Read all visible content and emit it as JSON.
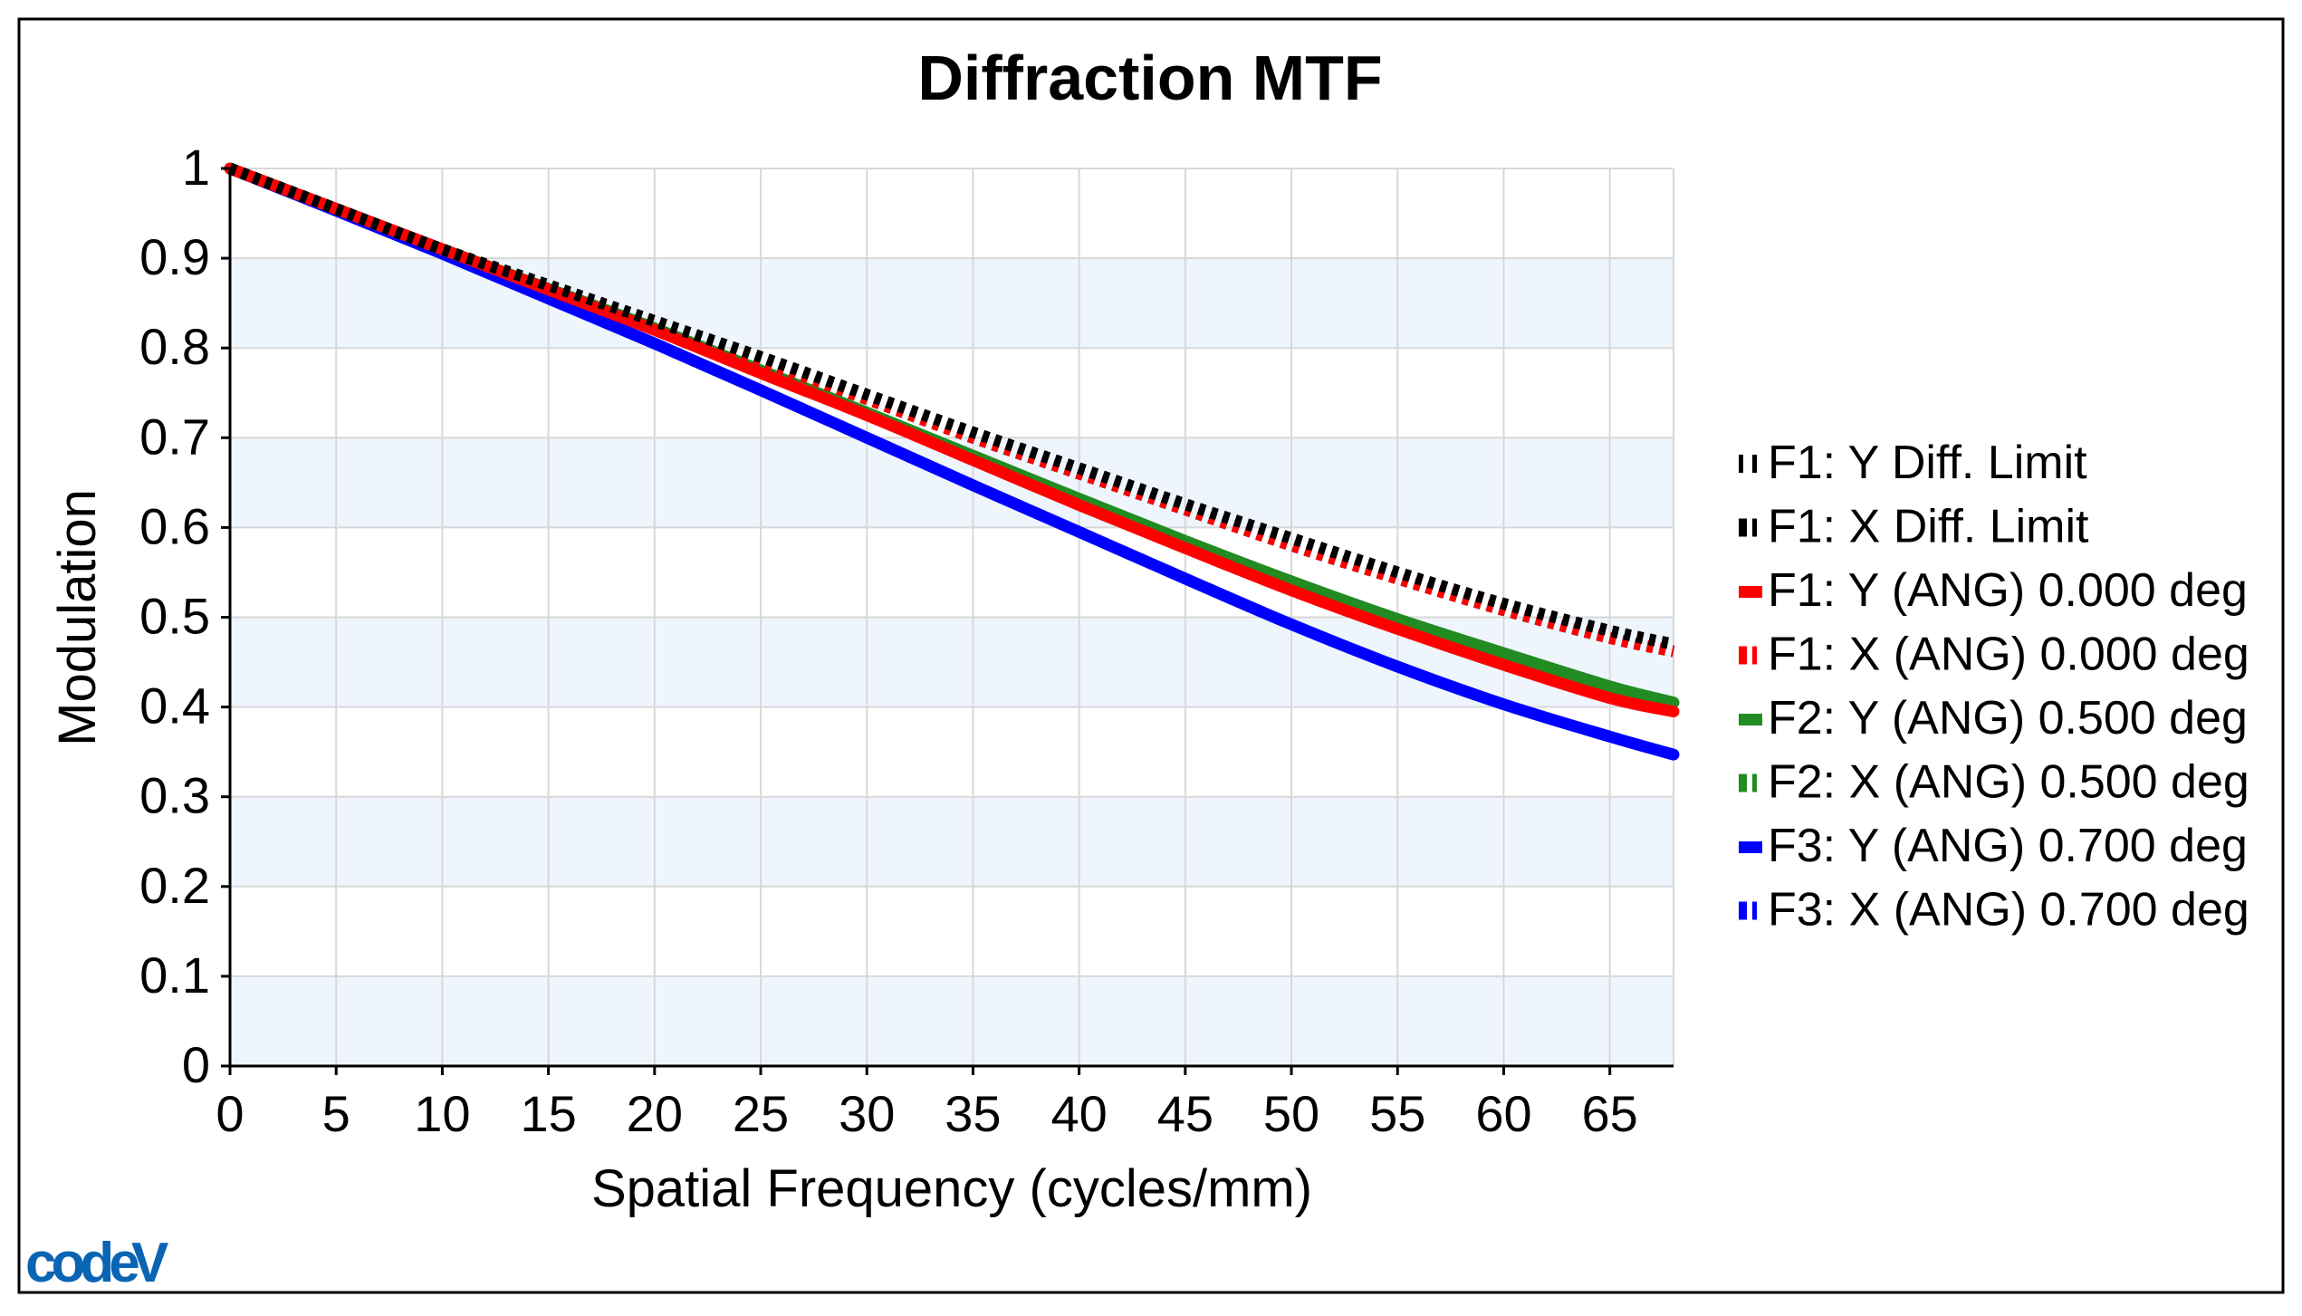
{
  "chart_data": {
    "type": "line",
    "title": "Diffraction MTF",
    "xlabel": "Spatial Frequency (cycles/mm)",
    "ylabel": "Modulation",
    "xlim": [
      0,
      68
    ],
    "ylim": [
      0,
      1
    ],
    "grid": true,
    "legend_position": "right",
    "xticks": [
      "0",
      "5",
      "10",
      "15",
      "20",
      "25",
      "30",
      "35",
      "40",
      "45",
      "50",
      "55",
      "60",
      "65"
    ],
    "yticks": [
      "0",
      "0.1",
      "0.2",
      "0.3",
      "0.4",
      "0.5",
      "0.6",
      "0.7",
      "0.8",
      "0.9",
      "1"
    ],
    "x": [
      0,
      5,
      10,
      15,
      20,
      25,
      30,
      35,
      40,
      45,
      50,
      55,
      60,
      65,
      68
    ],
    "series": [
      {
        "name": "F1: Y Diff. Limit",
        "color": "#000000",
        "style": "dashed-thin",
        "values": [
          1,
          0.955,
          0.91,
          0.87,
          0.83,
          0.79,
          0.748,
          0.706,
          0.666,
          0.626,
          0.588,
          0.55,
          0.515,
          0.485,
          0.47
        ]
      },
      {
        "name": "F1: X Diff. Limit",
        "color": "#000000",
        "style": "dashed",
        "values": [
          1,
          0.955,
          0.91,
          0.87,
          0.83,
          0.79,
          0.748,
          0.706,
          0.666,
          0.626,
          0.588,
          0.55,
          0.515,
          0.485,
          0.47
        ]
      },
      {
        "name": "F1: Y (ANG) 0.000 deg",
        "color": "#ff0000",
        "style": "solid",
        "values": [
          1,
          0.955,
          0.91,
          0.865,
          0.82,
          0.772,
          0.725,
          0.675,
          0.625,
          0.577,
          0.53,
          0.487,
          0.447,
          0.41,
          0.395
        ]
      },
      {
        "name": "F1: X (ANG) 0.000 deg",
        "color": "#ff0000",
        "style": "dashed",
        "values": [
          1,
          0.955,
          0.91,
          0.868,
          0.826,
          0.785,
          0.743,
          0.7,
          0.66,
          0.62,
          0.58,
          0.543,
          0.508,
          0.477,
          0.462
        ]
      },
      {
        "name": "F2: Y (ANG) 0.500 deg",
        "color": "#228b22",
        "style": "solid",
        "values": [
          1,
          0.955,
          0.91,
          0.866,
          0.822,
          0.775,
          0.728,
          0.68,
          0.632,
          0.585,
          0.54,
          0.498,
          0.46,
          0.423,
          0.405
        ]
      },
      {
        "name": "F2: X (ANG) 0.500 deg",
        "color": "#228b22",
        "style": "dashed",
        "values": [
          1,
          0.955,
          0.91,
          0.868,
          0.826,
          0.785,
          0.743,
          0.7,
          0.66,
          0.62,
          0.58,
          0.543,
          0.508,
          0.477,
          0.462
        ]
      },
      {
        "name": "F3: Y (ANG) 0.700 deg",
        "color": "#0000ff",
        "style": "solid",
        "values": [
          1,
          0.953,
          0.905,
          0.855,
          0.805,
          0.753,
          0.7,
          0.647,
          0.595,
          0.543,
          0.492,
          0.445,
          0.403,
          0.367,
          0.347
        ]
      },
      {
        "name": "F3: X (ANG) 0.700 deg",
        "color": "#0000ff",
        "style": "dashed",
        "values": [
          1,
          0.955,
          0.91,
          0.868,
          0.826,
          0.785,
          0.743,
          0.7,
          0.66,
          0.62,
          0.58,
          0.543,
          0.508,
          0.477,
          0.462
        ]
      }
    ]
  },
  "logo": {
    "text": "code V",
    "color": "#0a64b4"
  }
}
